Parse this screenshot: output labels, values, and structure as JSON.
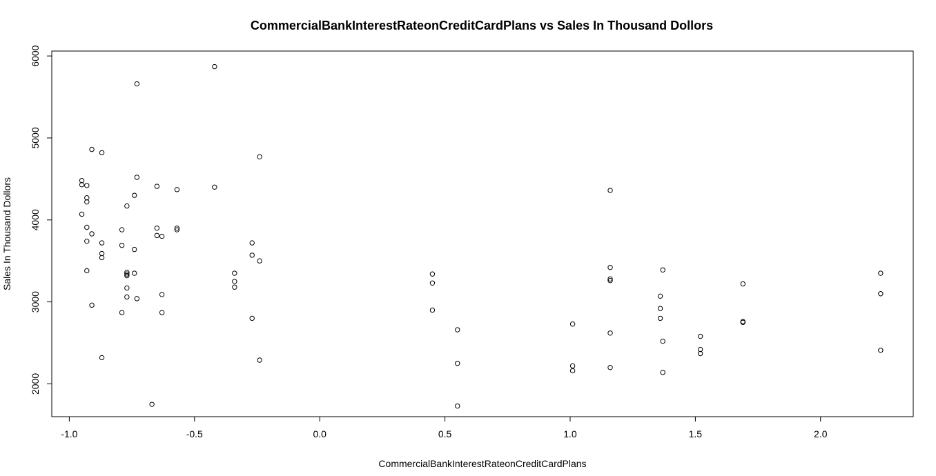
{
  "chart_data": {
    "type": "scatter",
    "title": "CommercialBankInterestRateonCreditCardPlans vs Sales In Thousand Dollors",
    "xlabel": "CommercialBankInterestRateonCreditCardPlans",
    "ylabel": "Sales In Thousand Dollors",
    "xlim": [
      -1.07,
      2.37
    ],
    "ylim": [
      1600,
      6060
    ],
    "xticks": [
      -1.0,
      -0.5,
      0.0,
      0.5,
      1.0,
      1.5,
      2.0
    ],
    "xtick_labels": [
      "-1.0",
      "-0.5",
      "0.0",
      "0.5",
      "1.0",
      "1.5",
      "2.0"
    ],
    "yticks": [
      2000,
      3000,
      4000,
      5000,
      6000
    ],
    "ytick_labels": [
      "2000",
      "3000",
      "4000",
      "5000",
      "6000"
    ],
    "grid": false,
    "legend": "none",
    "marker": "open-circle",
    "marker_color": "#000000",
    "points": [
      {
        "x": -0.95,
        "y": 4480
      },
      {
        "x": -0.95,
        "y": 4430
      },
      {
        "x": -0.93,
        "y": 4420
      },
      {
        "x": -0.93,
        "y": 4270
      },
      {
        "x": -0.93,
        "y": 4220
      },
      {
        "x": -0.95,
        "y": 4070
      },
      {
        "x": -0.93,
        "y": 3910
      },
      {
        "x": -0.91,
        "y": 3830
      },
      {
        "x": -0.93,
        "y": 3740
      },
      {
        "x": -0.93,
        "y": 3380
      },
      {
        "x": -0.91,
        "y": 2960
      },
      {
        "x": -0.91,
        "y": 4860
      },
      {
        "x": -0.87,
        "y": 4820
      },
      {
        "x": -0.87,
        "y": 3720
      },
      {
        "x": -0.87,
        "y": 3590
      },
      {
        "x": -0.87,
        "y": 3540
      },
      {
        "x": -0.87,
        "y": 2320
      },
      {
        "x": -0.79,
        "y": 3880
      },
      {
        "x": -0.79,
        "y": 3690
      },
      {
        "x": -0.79,
        "y": 2870
      },
      {
        "x": -0.77,
        "y": 4170
      },
      {
        "x": -0.77,
        "y": 3360
      },
      {
        "x": -0.77,
        "y": 3340
      },
      {
        "x": -0.77,
        "y": 3320
      },
      {
        "x": -0.77,
        "y": 3170
      },
      {
        "x": -0.77,
        "y": 3060
      },
      {
        "x": -0.73,
        "y": 5660
      },
      {
        "x": -0.73,
        "y": 4520
      },
      {
        "x": -0.74,
        "y": 4300
      },
      {
        "x": -0.74,
        "y": 3640
      },
      {
        "x": -0.74,
        "y": 3350
      },
      {
        "x": -0.73,
        "y": 3040
      },
      {
        "x": -0.67,
        "y": 1750
      },
      {
        "x": -0.65,
        "y": 4410
      },
      {
        "x": -0.65,
        "y": 3900
      },
      {
        "x": -0.65,
        "y": 3810
      },
      {
        "x": -0.63,
        "y": 3800
      },
      {
        "x": -0.63,
        "y": 3090
      },
      {
        "x": -0.63,
        "y": 2870
      },
      {
        "x": -0.57,
        "y": 4370
      },
      {
        "x": -0.57,
        "y": 3900
      },
      {
        "x": -0.57,
        "y": 3880
      },
      {
        "x": -0.42,
        "y": 5870
      },
      {
        "x": -0.42,
        "y": 4400
      },
      {
        "x": -0.34,
        "y": 3350
      },
      {
        "x": -0.34,
        "y": 3250
      },
      {
        "x": -0.34,
        "y": 3180
      },
      {
        "x": -0.27,
        "y": 3720
      },
      {
        "x": -0.27,
        "y": 3570
      },
      {
        "x": -0.27,
        "y": 2800
      },
      {
        "x": -0.24,
        "y": 4770
      },
      {
        "x": -0.24,
        "y": 3500
      },
      {
        "x": -0.24,
        "y": 2290
      },
      {
        "x": 0.45,
        "y": 3340
      },
      {
        "x": 0.45,
        "y": 3230
      },
      {
        "x": 0.45,
        "y": 2900
      },
      {
        "x": 0.55,
        "y": 2660
      },
      {
        "x": 0.55,
        "y": 2250
      },
      {
        "x": 0.55,
        "y": 1730
      },
      {
        "x": 1.01,
        "y": 2730
      },
      {
        "x": 1.01,
        "y": 2220
      },
      {
        "x": 1.01,
        "y": 2160
      },
      {
        "x": 1.16,
        "y": 4360
      },
      {
        "x": 1.16,
        "y": 3420
      },
      {
        "x": 1.16,
        "y": 3280
      },
      {
        "x": 1.16,
        "y": 3260
      },
      {
        "x": 1.16,
        "y": 2620
      },
      {
        "x": 1.16,
        "y": 2200
      },
      {
        "x": 1.36,
        "y": 3070
      },
      {
        "x": 1.36,
        "y": 2920
      },
      {
        "x": 1.36,
        "y": 2800
      },
      {
        "x": 1.37,
        "y": 3390
      },
      {
        "x": 1.37,
        "y": 2520
      },
      {
        "x": 1.37,
        "y": 2140
      },
      {
        "x": 1.52,
        "y": 2580
      },
      {
        "x": 1.52,
        "y": 2420
      },
      {
        "x": 1.52,
        "y": 2370
      },
      {
        "x": 1.69,
        "y": 3220
      },
      {
        "x": 1.69,
        "y": 2760
      },
      {
        "x": 1.69,
        "y": 2750
      },
      {
        "x": 2.24,
        "y": 3350
      },
      {
        "x": 2.24,
        "y": 3100
      },
      {
        "x": 2.24,
        "y": 2410
      }
    ]
  }
}
